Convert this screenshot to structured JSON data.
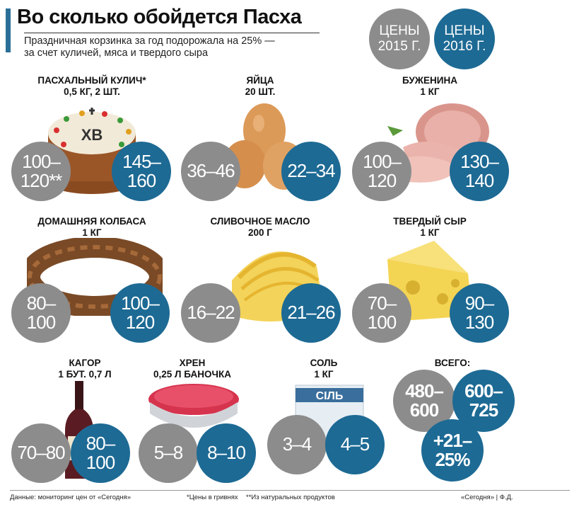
{
  "header": {
    "title": "Во сколько обойдется Пасха",
    "subtitle": "Праздничная корзинка за год подорожала на 25% —\nза счет куличей, мяса и твердого сыра"
  },
  "legend": {
    "prices_2015": "ЦЕНЫ\n2015 Г.",
    "prices_2016": "ЦЕНЫ\n2016 Г.",
    "color_2015": "#8c8c8c",
    "color_2016": "#1d6a94"
  },
  "items": [
    {
      "label": "ПАСХАЛЬНЫЙ КУЛИЧ*\n0,5 КГ, 2 ШТ.",
      "price_2015": "100–\n120**",
      "price_2016": "145–\n160",
      "icon": "easter-cake-icon",
      "cake_text": "ХВ"
    },
    {
      "label": "ЯЙЦА\n20 ШТ.",
      "price_2015": "36–46",
      "price_2016": "22–34",
      "icon": "eggs-icon"
    },
    {
      "label": "БУЖЕНИНА\n1 КГ",
      "price_2015": "100–\n120",
      "price_2016": "130–\n140",
      "icon": "ham-icon"
    },
    {
      "label": "ДОМАШНЯЯ КОЛБАСА\n1 КГ",
      "price_2015": "80–\n100",
      "price_2016": "100–\n120",
      "icon": "sausage-icon"
    },
    {
      "label": "СЛИВОЧНОЕ МАСЛО\n200 Г",
      "price_2015": "16–22",
      "price_2016": "21–26",
      "icon": "butter-icon"
    },
    {
      "label": "ТВЕРДЫЙ СЫР\n1 КГ",
      "price_2015": "70–\n100",
      "price_2016": "90–\n130",
      "icon": "cheese-icon"
    },
    {
      "label": "КАГОР\n1 БУТ. 0,7 Л",
      "price_2015": "70–80",
      "price_2016": "80–\n100",
      "icon": "wine-bottle-icon"
    },
    {
      "label": "ХРЕН\n0,25 Л БАНОЧКА",
      "price_2015": "5–8",
      "price_2016": "8–10",
      "icon": "horseradish-jar-icon"
    },
    {
      "label": "СОЛЬ\n1 КГ",
      "price_2015": "3–4",
      "price_2016": "4–5",
      "icon": "salt-pack-icon",
      "pack_text": "СІЛЬ"
    }
  ],
  "total": {
    "label": "ВСЕГО:",
    "price_2015": "480–\n600",
    "price_2016": "600–\n725",
    "change": "+21–\n25%"
  },
  "footer": {
    "source": "Данные: мониторинг цен от «Сегодня»",
    "note1": "*Цены в гривнях",
    "note2": "**Из натуральных продуктов",
    "credit": "«Сегодня» | Ф.Д."
  }
}
